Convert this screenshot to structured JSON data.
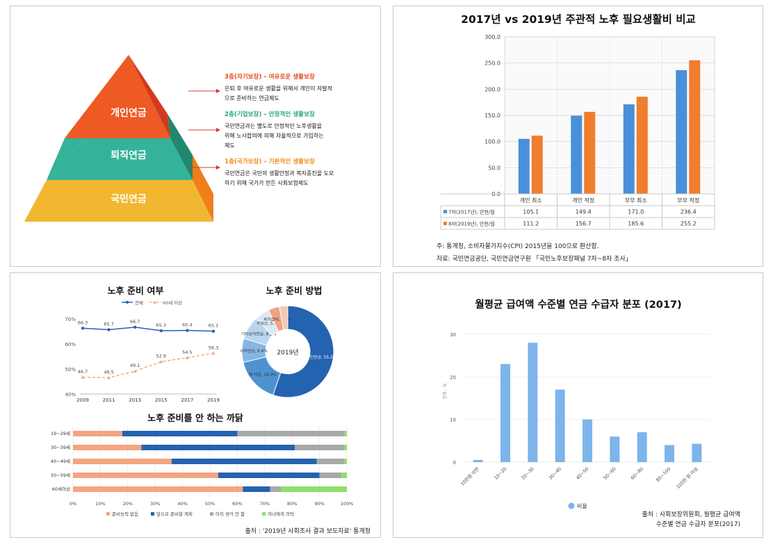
{
  "colors": {
    "pyr_top": "#ee5a24",
    "pyr_top_side": "#d23a1c",
    "pyr_mid": "#34b39a",
    "pyr_mid_side": "#23866f",
    "pyr_bot": "#f2b731",
    "pyr_bot_side": "#ef7f1a",
    "blue": "#4a90d9",
    "orange": "#ef7e2e",
    "dark_blue": "#2463b0",
    "salmon": "#f4a582",
    "grey": "#a8a8a8",
    "green": "#8ee06a",
    "bar_light": "#7db4ea"
  },
  "pyramid": {
    "levels": [
      "개인연금",
      "퇴직연금",
      "국민연금"
    ],
    "tiers": [
      {
        "title": "3층(자기보장) – 여유로운 생활보장",
        "color": "#e24a1a",
        "lines": [
          "은퇴 후 여유로운 생활을 위해서 개인이 자발적",
          "으로 준비하는 연금제도"
        ]
      },
      {
        "title": "2층(기업보장) – 안정적인 생활보장",
        "color": "#23a386",
        "lines": [
          "국민연금과는  별도로  안정적인  노후생활을",
          "위해  노사합의에  의해  자율적으로  가입하는",
          "제도"
        ]
      },
      {
        "title": "1층(국가보장) – 기본적인 생활보장",
        "color": "#ef8a12",
        "lines": [
          "국민연금은 국민의 생활안정과 복지증진을 도모",
          "하기 위해 국가가 만든 사회보험제도"
        ]
      }
    ]
  },
  "chart_data": [
    {
      "type": "bar",
      "title": "2017년 vs 2019년 주관적 노후 필요생활비 비교",
      "categories": [
        "개인 최소",
        "개인 적정",
        "부부 최소",
        "부부 적정"
      ],
      "series": [
        {
          "name": "7차(2017년), 만원/월",
          "values": [
            105.1,
            149.4,
            171.0,
            236.4
          ],
          "labels": [
            "105.1",
            "149.4",
            "171.0",
            "236.4"
          ]
        },
        {
          "name": "8차(2019년), 만원/월",
          "values": [
            111.2,
            156.7,
            185.6,
            255.2
          ],
          "labels": [
            "111.2",
            "156.7",
            "185.6",
            "255.2"
          ]
        }
      ],
      "ylim": [
        0,
        300
      ],
      "yticks": [
        "0.0",
        "50.0",
        "100.0",
        "150.0",
        "200.0",
        "250.0",
        "300.0"
      ],
      "notes": [
        "주: 통계청, 소비자물가지수(CPI) 2015년을 100으로 환산함.",
        "자료: 국민연금공단, 국민연금연구원 「국민노후보장패널 7차~8차 조사」"
      ]
    },
    {
      "type": "line",
      "title": "노후 준비 여부",
      "x": [
        "2009",
        "2011",
        "2013",
        "2015",
        "2017",
        "2019"
      ],
      "series": [
        {
          "name": "전체",
          "values": [
            66.3,
            65.7,
            66.7,
            65.3,
            65.4,
            65.1
          ],
          "labels": [
            "66.3",
            "65.7",
            "66.7",
            "65.3",
            "65.4",
            "65.1"
          ]
        },
        {
          "name": "60세 이상",
          "values": [
            46.7,
            46.5,
            49.1,
            52.9,
            54.5,
            56.3
          ],
          "labels": [
            "46.7",
            "46.5",
            "49.1",
            "52.9",
            "54.5",
            "56.3"
          ]
        }
      ],
      "ylim": [
        40,
        70
      ],
      "yticks": [
        "40%",
        "50%",
        "60%",
        "70%"
      ]
    },
    {
      "type": "pie",
      "title": "노후 준비 방법",
      "center": "2019년",
      "slices": [
        {
          "name": "국민연금",
          "value": 55.2,
          "label": "국민연금, 55.2%"
        },
        {
          "name": "예금, 적금",
          "value": 16.0,
          "label": "예·적금, 16.0%"
        },
        {
          "name": "사적연금",
          "value": 8.4,
          "label": "사적연금, 8.4%"
        },
        {
          "name": "기타공적연금",
          "value": 8.3,
          "label": "기타공적연금, 8.3%"
        },
        {
          "name": "부동산",
          "value": 5.2,
          "label": "부동산, 5.2%"
        },
        {
          "name": "퇴직급여",
          "value": 3.9,
          "label": "퇴직급여, 3.9%"
        },
        {
          "name": "기타",
          "value": 3.0,
          "label": ""
        }
      ]
    },
    {
      "type": "bar",
      "orientation": "horizontal-stacked",
      "title": "노후 준비를 안 하는 까닭",
      "categories": [
        "19~29세",
        "30~39세",
        "40~49세",
        "50~59세",
        "60세이상"
      ],
      "series": [
        {
          "name": "준비능력 없음",
          "values": [
            18,
            25,
            36,
            53,
            62
          ]
        },
        {
          "name": "앞으로 준비할 계획",
          "values": [
            42,
            56,
            53,
            37,
            10
          ]
        },
        {
          "name": "아직 생각 안 함",
          "values": [
            39,
            18,
            10,
            8,
            4
          ]
        },
        {
          "name": "자녀에게 의탁",
          "values": [
            1,
            1,
            1,
            2,
            24
          ]
        }
      ],
      "xlim": [
        0,
        100
      ],
      "xticks": [
        "0%",
        "10%",
        "20%",
        "30%",
        "40%",
        "50%",
        "60%",
        "70%",
        "80%",
        "90%",
        "100%"
      ],
      "source": "출처 : '2019년 사회조사 결과 보도자료' 통계청"
    },
    {
      "type": "bar",
      "title": "월평균 급여액 수준별 연금 수급자 분포 (2017)",
      "categories": [
        "10만원 미만",
        "10~20",
        "20~30",
        "30~40",
        "40~50",
        "50~60",
        "60~80",
        "80~100",
        "100만 원 이상"
      ],
      "series": [
        {
          "name": "비율",
          "values": [
            0.5,
            23.0,
            28.0,
            17.0,
            10.0,
            6.0,
            7.0,
            4.0,
            4.3
          ]
        }
      ],
      "ylim": [
        0,
        30
      ],
      "yticks": [
        "0",
        "10",
        "20",
        "30"
      ],
      "ylabel": "단위 : %",
      "source": [
        "출처 : 사회보장위원회, 월평균 급여액",
        "수준별 연금 수급자 분포(2017)"
      ]
    }
  ]
}
